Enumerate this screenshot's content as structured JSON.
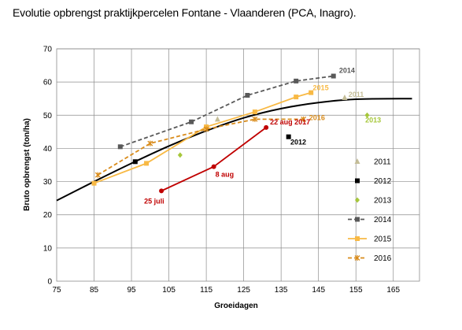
{
  "chart_data": {
    "type": "line",
    "title": "Evolutie opbrengst praktijkpercelen Fontane - Vlaanderen (PCA, Inagro).",
    "xlabel": "Groeidagen",
    "ylabel": "Bruto opbrengst (ton/ha)",
    "xlim": [
      75,
      172
    ],
    "ylim": [
      0,
      70
    ],
    "xticks": [
      75,
      85,
      95,
      105,
      115,
      125,
      135,
      145,
      155,
      165
    ],
    "yticks": [
      0,
      10,
      20,
      30,
      40,
      50,
      60,
      70
    ],
    "grid": true,
    "legend_position": "right",
    "series": [
      {
        "name": "2011",
        "type": "scatter",
        "color": "#c4bd97",
        "marker": "triangle",
        "points": [
          [
            118,
            48.8
          ],
          [
            152,
            55.3
          ]
        ],
        "label": "2011",
        "label_at": [
          153,
          55.5
        ]
      },
      {
        "name": "2012",
        "type": "scatter",
        "color": "#000000",
        "marker": "square",
        "points": [
          [
            96,
            36
          ],
          [
            137,
            43.5
          ]
        ],
        "label": "2012",
        "label_at": [
          137.5,
          41.2
        ]
      },
      {
        "name": "2013",
        "type": "scatter",
        "color": "#a6c73a",
        "marker": "diamond",
        "points": [
          [
            108,
            38
          ],
          [
            158,
            50
          ]
        ],
        "label": "2013",
        "label_at": [
          157.5,
          47.8
        ]
      },
      {
        "name": "2014",
        "type": "line",
        "dashed": true,
        "color": "#595959",
        "marker": "square",
        "points": [
          [
            92,
            40.5
          ],
          [
            111,
            48
          ],
          [
            126,
            56
          ],
          [
            139,
            60.3
          ],
          [
            149,
            61.8
          ]
        ],
        "label": "2014",
        "label_at": [
          150.5,
          62.8
        ]
      },
      {
        "name": "2015",
        "type": "line",
        "dashed": false,
        "color": "#f8b944",
        "marker": "square",
        "points": [
          [
            85,
            29.5
          ],
          [
            99,
            35.5
          ],
          [
            115,
            46.5
          ],
          [
            128,
            51
          ],
          [
            139,
            55.5
          ],
          [
            143,
            56.8
          ]
        ],
        "label": "2015",
        "label_at": [
          143.5,
          57.5
        ]
      },
      {
        "name": "2016",
        "type": "line",
        "dashed": true,
        "color": "#d98c1c",
        "marker": "star",
        "points": [
          [
            86,
            32
          ],
          [
            100,
            41.5
          ],
          [
            115,
            45.8
          ],
          [
            128,
            48.8
          ],
          [
            141,
            48.8
          ]
        ],
        "label": "2016",
        "label_at": [
          142.5,
          48.5
        ]
      },
      {
        "name": "2017",
        "type": "line",
        "dashed": false,
        "color": "#c00000",
        "marker": "circle",
        "points": [
          [
            103,
            27.2
          ],
          [
            117,
            34.5
          ],
          [
            131,
            46.3
          ]
        ],
        "point_labels": [
          "25 juli",
          "8 aug",
          "22 aug 2017"
        ]
      }
    ],
    "trend": {
      "color": "#000000",
      "points": [
        [
          75,
          24.3
        ],
        [
          85,
          30
        ],
        [
          95,
          35.5
        ],
        [
          105,
          40.7
        ],
        [
          115,
          45.3
        ],
        [
          125,
          49.2
        ],
        [
          135,
          52
        ],
        [
          145,
          53.8
        ],
        [
          155,
          54.8
        ],
        [
          170,
          55
        ]
      ]
    },
    "legend": [
      "2011",
      "2012",
      "2013",
      "2014",
      "2015",
      "2016"
    ]
  }
}
